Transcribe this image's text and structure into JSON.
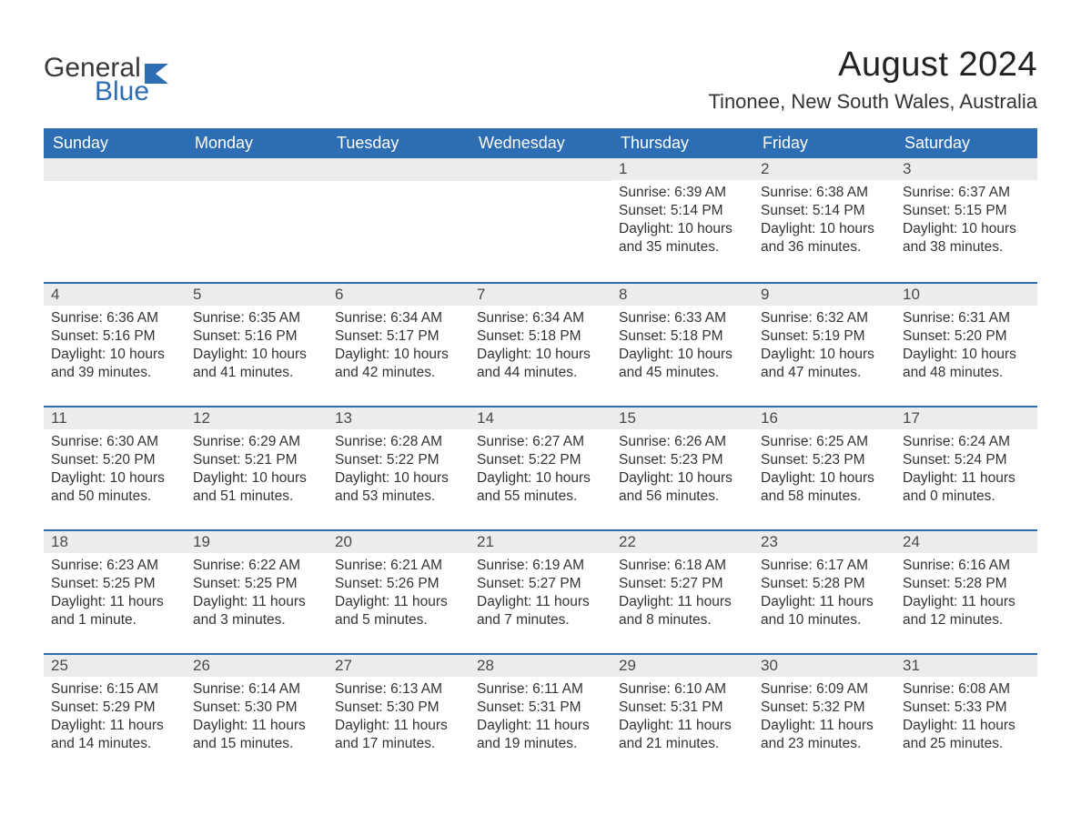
{
  "logo": {
    "word1": "General",
    "word2": "Blue",
    "flag_color": "#2d6db3"
  },
  "title": "August 2024",
  "location": "Tinonee, New South Wales, Australia",
  "colors": {
    "header_bg": "#2d6db3",
    "header_text": "#ffffff",
    "daybar_bg": "#ececec",
    "daybar_border": "#2d6db3",
    "body_text": "#333333",
    "page_bg": "#ffffff"
  },
  "day_headers": [
    "Sunday",
    "Monday",
    "Tuesday",
    "Wednesday",
    "Thursday",
    "Friday",
    "Saturday"
  ],
  "weeks": [
    [
      null,
      null,
      null,
      null,
      {
        "date": "1",
        "sunrise": "Sunrise: 6:39 AM",
        "sunset": "Sunset: 5:14 PM",
        "daylight1": "Daylight: 10 hours",
        "daylight2": "and 35 minutes."
      },
      {
        "date": "2",
        "sunrise": "Sunrise: 6:38 AM",
        "sunset": "Sunset: 5:14 PM",
        "daylight1": "Daylight: 10 hours",
        "daylight2": "and 36 minutes."
      },
      {
        "date": "3",
        "sunrise": "Sunrise: 6:37 AM",
        "sunset": "Sunset: 5:15 PM",
        "daylight1": "Daylight: 10 hours",
        "daylight2": "and 38 minutes."
      }
    ],
    [
      {
        "date": "4",
        "sunrise": "Sunrise: 6:36 AM",
        "sunset": "Sunset: 5:16 PM",
        "daylight1": "Daylight: 10 hours",
        "daylight2": "and 39 minutes."
      },
      {
        "date": "5",
        "sunrise": "Sunrise: 6:35 AM",
        "sunset": "Sunset: 5:16 PM",
        "daylight1": "Daylight: 10 hours",
        "daylight2": "and 41 minutes."
      },
      {
        "date": "6",
        "sunrise": "Sunrise: 6:34 AM",
        "sunset": "Sunset: 5:17 PM",
        "daylight1": "Daylight: 10 hours",
        "daylight2": "and 42 minutes."
      },
      {
        "date": "7",
        "sunrise": "Sunrise: 6:34 AM",
        "sunset": "Sunset: 5:18 PM",
        "daylight1": "Daylight: 10 hours",
        "daylight2": "and 44 minutes."
      },
      {
        "date": "8",
        "sunrise": "Sunrise: 6:33 AM",
        "sunset": "Sunset: 5:18 PM",
        "daylight1": "Daylight: 10 hours",
        "daylight2": "and 45 minutes."
      },
      {
        "date": "9",
        "sunrise": "Sunrise: 6:32 AM",
        "sunset": "Sunset: 5:19 PM",
        "daylight1": "Daylight: 10 hours",
        "daylight2": "and 47 minutes."
      },
      {
        "date": "10",
        "sunrise": "Sunrise: 6:31 AM",
        "sunset": "Sunset: 5:20 PM",
        "daylight1": "Daylight: 10 hours",
        "daylight2": "and 48 minutes."
      }
    ],
    [
      {
        "date": "11",
        "sunrise": "Sunrise: 6:30 AM",
        "sunset": "Sunset: 5:20 PM",
        "daylight1": "Daylight: 10 hours",
        "daylight2": "and 50 minutes."
      },
      {
        "date": "12",
        "sunrise": "Sunrise: 6:29 AM",
        "sunset": "Sunset: 5:21 PM",
        "daylight1": "Daylight: 10 hours",
        "daylight2": "and 51 minutes."
      },
      {
        "date": "13",
        "sunrise": "Sunrise: 6:28 AM",
        "sunset": "Sunset: 5:22 PM",
        "daylight1": "Daylight: 10 hours",
        "daylight2": "and 53 minutes."
      },
      {
        "date": "14",
        "sunrise": "Sunrise: 6:27 AM",
        "sunset": "Sunset: 5:22 PM",
        "daylight1": "Daylight: 10 hours",
        "daylight2": "and 55 minutes."
      },
      {
        "date": "15",
        "sunrise": "Sunrise: 6:26 AM",
        "sunset": "Sunset: 5:23 PM",
        "daylight1": "Daylight: 10 hours",
        "daylight2": "and 56 minutes."
      },
      {
        "date": "16",
        "sunrise": "Sunrise: 6:25 AM",
        "sunset": "Sunset: 5:23 PM",
        "daylight1": "Daylight: 10 hours",
        "daylight2": "and 58 minutes."
      },
      {
        "date": "17",
        "sunrise": "Sunrise: 6:24 AM",
        "sunset": "Sunset: 5:24 PM",
        "daylight1": "Daylight: 11 hours",
        "daylight2": "and 0 minutes."
      }
    ],
    [
      {
        "date": "18",
        "sunrise": "Sunrise: 6:23 AM",
        "sunset": "Sunset: 5:25 PM",
        "daylight1": "Daylight: 11 hours",
        "daylight2": "and 1 minute."
      },
      {
        "date": "19",
        "sunrise": "Sunrise: 6:22 AM",
        "sunset": "Sunset: 5:25 PM",
        "daylight1": "Daylight: 11 hours",
        "daylight2": "and 3 minutes."
      },
      {
        "date": "20",
        "sunrise": "Sunrise: 6:21 AM",
        "sunset": "Sunset: 5:26 PM",
        "daylight1": "Daylight: 11 hours",
        "daylight2": "and 5 minutes."
      },
      {
        "date": "21",
        "sunrise": "Sunrise: 6:19 AM",
        "sunset": "Sunset: 5:27 PM",
        "daylight1": "Daylight: 11 hours",
        "daylight2": "and 7 minutes."
      },
      {
        "date": "22",
        "sunrise": "Sunrise: 6:18 AM",
        "sunset": "Sunset: 5:27 PM",
        "daylight1": "Daylight: 11 hours",
        "daylight2": "and 8 minutes."
      },
      {
        "date": "23",
        "sunrise": "Sunrise: 6:17 AM",
        "sunset": "Sunset: 5:28 PM",
        "daylight1": "Daylight: 11 hours",
        "daylight2": "and 10 minutes."
      },
      {
        "date": "24",
        "sunrise": "Sunrise: 6:16 AM",
        "sunset": "Sunset: 5:28 PM",
        "daylight1": "Daylight: 11 hours",
        "daylight2": "and 12 minutes."
      }
    ],
    [
      {
        "date": "25",
        "sunrise": "Sunrise: 6:15 AM",
        "sunset": "Sunset: 5:29 PM",
        "daylight1": "Daylight: 11 hours",
        "daylight2": "and 14 minutes."
      },
      {
        "date": "26",
        "sunrise": "Sunrise: 6:14 AM",
        "sunset": "Sunset: 5:30 PM",
        "daylight1": "Daylight: 11 hours",
        "daylight2": "and 15 minutes."
      },
      {
        "date": "27",
        "sunrise": "Sunrise: 6:13 AM",
        "sunset": "Sunset: 5:30 PM",
        "daylight1": "Daylight: 11 hours",
        "daylight2": "and 17 minutes."
      },
      {
        "date": "28",
        "sunrise": "Sunrise: 6:11 AM",
        "sunset": "Sunset: 5:31 PM",
        "daylight1": "Daylight: 11 hours",
        "daylight2": "and 19 minutes."
      },
      {
        "date": "29",
        "sunrise": "Sunrise: 6:10 AM",
        "sunset": "Sunset: 5:31 PM",
        "daylight1": "Daylight: 11 hours",
        "daylight2": "and 21 minutes."
      },
      {
        "date": "30",
        "sunrise": "Sunrise: 6:09 AM",
        "sunset": "Sunset: 5:32 PM",
        "daylight1": "Daylight: 11 hours",
        "daylight2": "and 23 minutes."
      },
      {
        "date": "31",
        "sunrise": "Sunrise: 6:08 AM",
        "sunset": "Sunset: 5:33 PM",
        "daylight1": "Daylight: 11 hours",
        "daylight2": "and 25 minutes."
      }
    ]
  ]
}
